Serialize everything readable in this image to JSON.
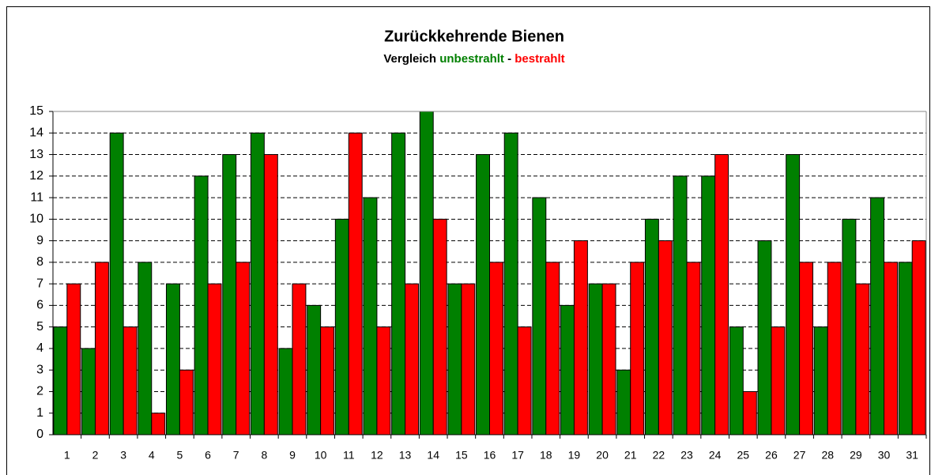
{
  "chart_data": {
    "type": "bar",
    "title": "Zurückkehrende Bienen",
    "subtitle": {
      "prefix": "Vergleich",
      "separator": "-"
    },
    "categories": [
      "1",
      "2",
      "3",
      "4",
      "5",
      "6",
      "7",
      "8",
      "9",
      "10",
      "11",
      "12",
      "13",
      "14",
      "15",
      "16",
      "17",
      "18",
      "19",
      "20",
      "21",
      "22",
      "23",
      "24",
      "25",
      "26",
      "27",
      "28",
      "29",
      "30",
      "31"
    ],
    "series": [
      {
        "name": "unbestrahlt",
        "color": "#008000",
        "values": [
          5,
          4,
          14,
          8,
          7,
          12,
          13,
          14,
          4,
          6,
          10,
          11,
          14,
          15,
          7,
          13,
          14,
          11,
          6,
          7,
          3,
          10,
          12,
          12,
          5,
          9,
          13,
          5,
          10,
          11,
          8
        ]
      },
      {
        "name": "bestrahlt",
        "color": "#ff0000",
        "values": [
          7,
          8,
          5,
          1,
          3,
          7,
          8,
          13,
          7,
          5,
          14,
          5,
          7,
          10,
          7,
          8,
          5,
          8,
          9,
          7,
          8,
          9,
          8,
          13,
          2,
          5,
          8,
          8,
          7,
          8,
          9
        ]
      }
    ],
    "ylim": [
      0,
      15
    ],
    "yticks": [
      0,
      1,
      2,
      3,
      4,
      5,
      6,
      7,
      8,
      9,
      10,
      11,
      12,
      13,
      14,
      15
    ],
    "grid": true
  }
}
